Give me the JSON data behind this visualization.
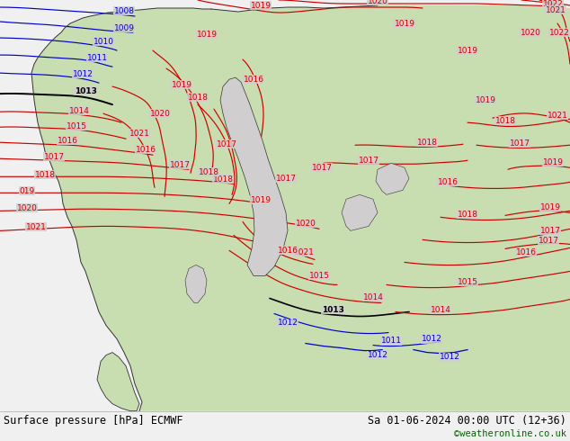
{
  "title_left": "Surface pressure [hPa] ECMWF",
  "title_right": "Sa 01-06-2024 00:00 UTC (12+36)",
  "copyright": "©weatheronline.co.uk",
  "bg_color": "#d0cece",
  "land_color": "#c8ddb0",
  "land_edge": "#333333",
  "water_color": "#c8d4e0",
  "bottom_bar_color": "#f0f0f0",
  "blue": "#0000cc",
  "red": "#cc0000",
  "black": "#000000",
  "green_text": "#006600",
  "figsize": [
    6.34,
    4.9
  ],
  "dpi": 100
}
